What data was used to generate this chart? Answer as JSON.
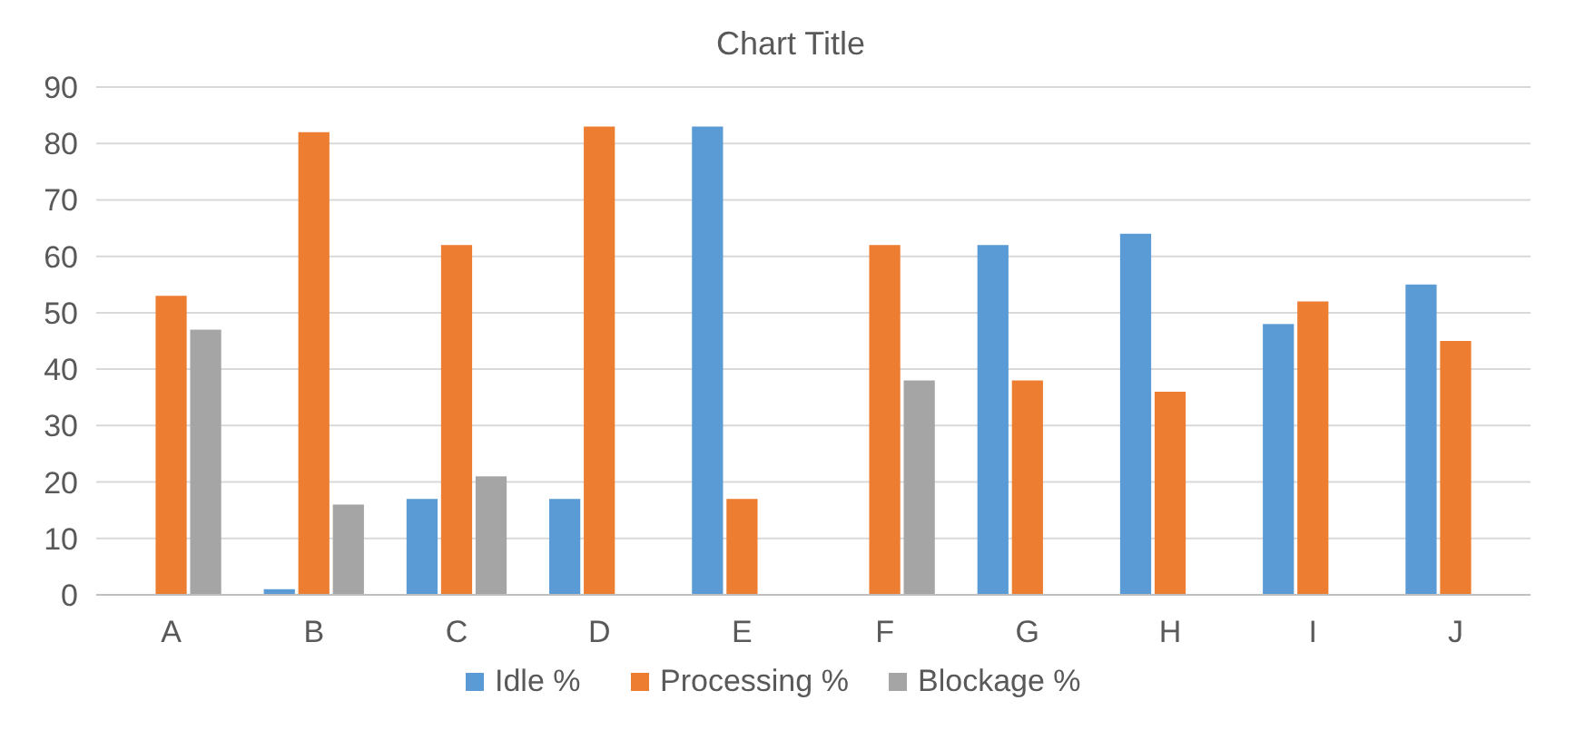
{
  "chart_data": {
    "type": "bar",
    "title": "Chart Title",
    "categories": [
      "A",
      "B",
      "C",
      "D",
      "E",
      "F",
      "G",
      "H",
      "I",
      "J"
    ],
    "series": [
      {
        "name": "Idle %",
        "color": "#5b9bd5",
        "values": [
          0,
          1,
          17,
          17,
          83,
          0,
          62,
          64,
          48,
          55
        ]
      },
      {
        "name": "Processing %",
        "color": "#ed7d31",
        "values": [
          53,
          82,
          62,
          83,
          17,
          62,
          38,
          36,
          52,
          45
        ]
      },
      {
        "name": "Blockage %",
        "color": "#a5a5a5",
        "values": [
          47,
          16,
          21,
          0,
          0,
          38,
          0,
          0,
          0,
          0
        ]
      }
    ],
    "ylim": [
      0,
      90
    ],
    "yticks": [
      0,
      10,
      20,
      30,
      40,
      50,
      60,
      70,
      80,
      90
    ],
    "grid": "y",
    "legend": "bottom"
  }
}
